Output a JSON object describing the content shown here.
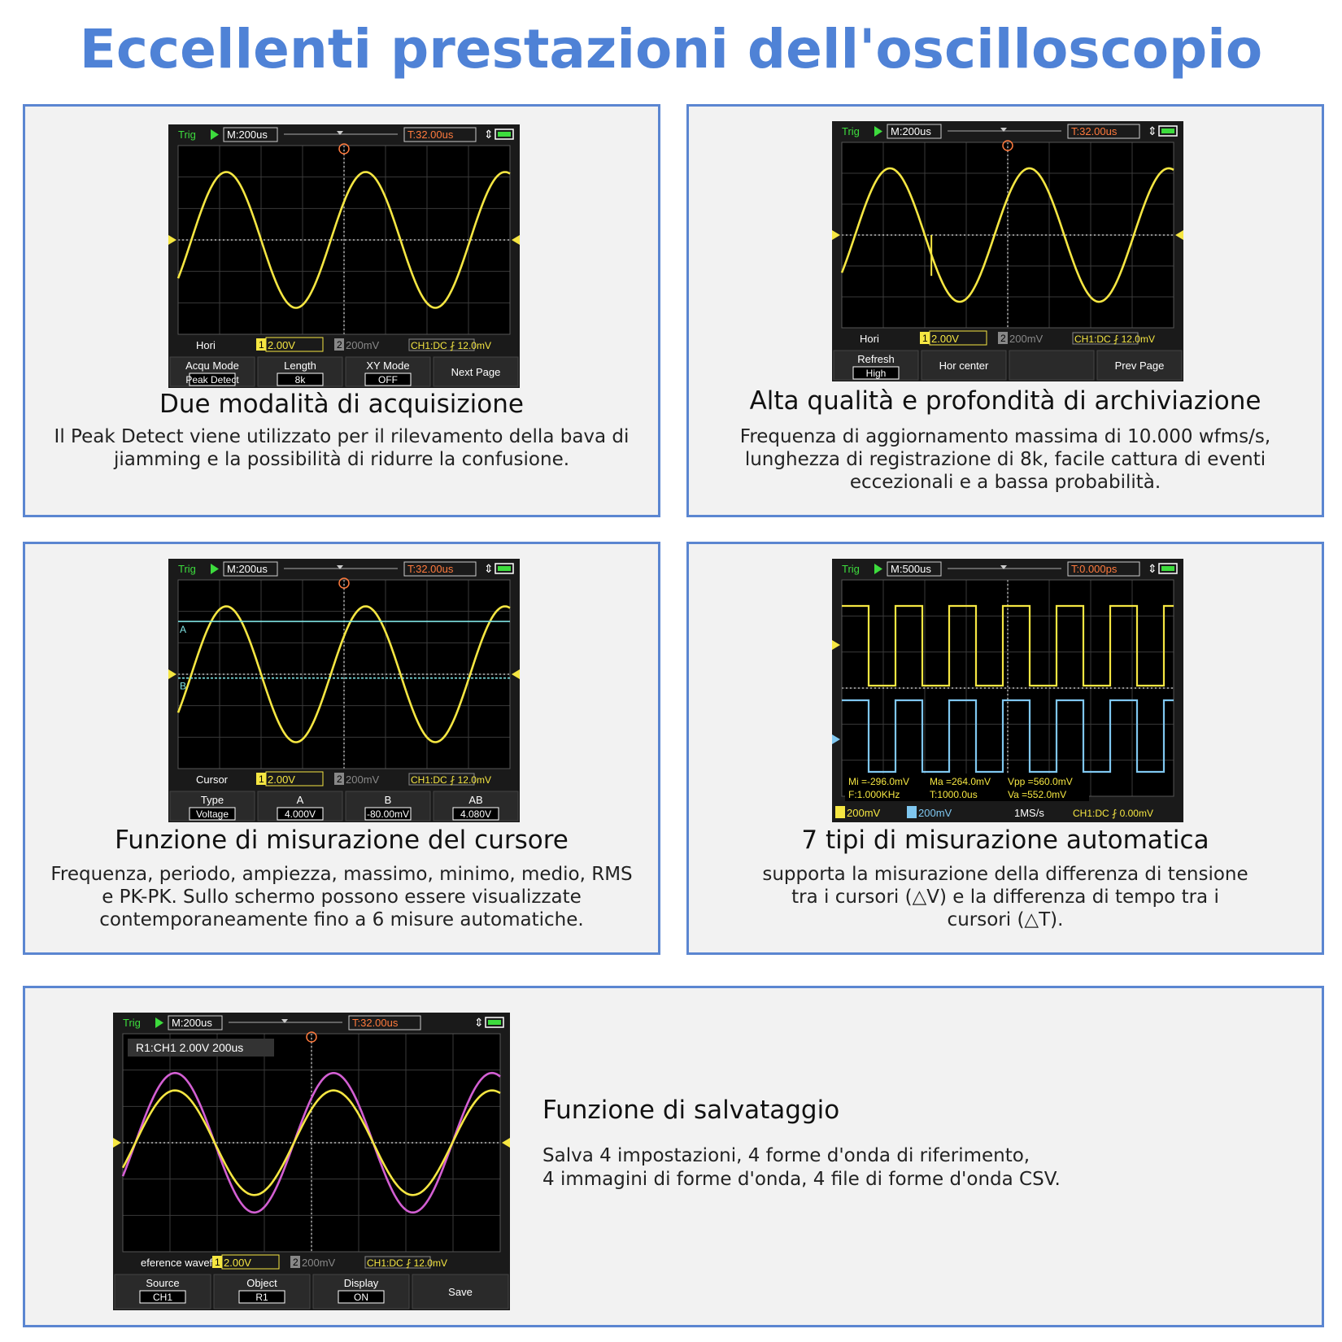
{
  "title": "Eccellenti prestazioni dell'oscilloscopio",
  "colors": {
    "title": "#4f82d6",
    "panel_border": "#5b86d1",
    "panel_bg": "#f2f2f2",
    "ch1": "#f5e642",
    "ch2": "#7fc7f0",
    "ref": "#d35fd3",
    "cursor": "#7fe3e3"
  },
  "panels": [
    {
      "heading": "Due modalità di acquisizione",
      "body": "Il Peak Detect viene utilizzato per il rilevamento della bava di jiamming e la possibilità di ridurre la confusione.",
      "screen": {
        "trig": "Trig",
        "timebase": "M:200us",
        "trig_time": "T:32.00us",
        "menu": "Hori",
        "ch1": "2.00V",
        "ch2": "200mV",
        "ch_info": "CH1:DC ⨏ 12.0mV",
        "softkeys": [
          {
            "label": "Acqu Mode",
            "value": "Peak Detect"
          },
          {
            "label": "Length",
            "value": "8k"
          },
          {
            "label": "XY Mode",
            "value": "OFF"
          },
          {
            "label": "Next Page",
            "value": ""
          }
        ]
      }
    },
    {
      "heading": "Alta qualità e profondità di archiviazione",
      "body": "Frequenza di aggiornamento massima di 10.000 wfms/s, lunghezza di registrazione di 8k, facile cattura di eventi eccezionali e a bassa probabilità.",
      "screen": {
        "trig": "Trig",
        "timebase": "M:200us",
        "trig_time": "T:32.00us",
        "menu": "Hori",
        "ch1": "2.00V",
        "ch2": "200mV",
        "ch_info": "CH1:DC ⨏ 12.0mV",
        "softkeys": [
          {
            "label": "Refresh",
            "value": "High"
          },
          {
            "label": "Hor center",
            "value": ""
          },
          {
            "label": "",
            "value": ""
          },
          {
            "label": "Prev Page",
            "value": ""
          }
        ]
      }
    },
    {
      "heading": "Funzione di misurazione del cursore",
      "body": "Frequenza, periodo, ampiezza, massimo, minimo, medio, RMS e PK-PK. Sullo schermo possono essere visualizzate contemporaneamente fino a 6 misure automatiche.",
      "screen": {
        "trig": "Trig",
        "timebase": "M:200us",
        "trig_time": "T:32.00us",
        "menu": "Cursor",
        "ch1": "2.00V",
        "ch2": "200mV",
        "ch_info": "CH1:DC ⨏ 12.0mV",
        "cursor_a": "A",
        "cursor_b": "B",
        "softkeys": [
          {
            "label": "Type",
            "value": "Voltage"
          },
          {
            "label": "A",
            "value": "4.000V"
          },
          {
            "label": "B",
            "value": "-80.00mV"
          },
          {
            "label": "AB",
            "value": "4.080V"
          }
        ]
      }
    },
    {
      "heading": "7 tipi di misurazione automatica",
      "body": "supporta la misurazione della differenza di tensione tra i cursori (△V) e la differenza di tempo tra i cursori (△T).",
      "screen": {
        "trig": "Trig",
        "timebase": "M:500us",
        "trig_time": "T:0.000ps",
        "measurements": [
          "Mi =-296.0mV",
          "Ma =264.0mV",
          "Vpp =560.0mV",
          "F:1.000KHz",
          "T:1000.0us",
          "Va =552.0mV"
        ],
        "ch1": "200mV",
        "ch2": "200mV",
        "sample_rate": "1MS/s",
        "ch_info": "CH1:DC ⨏ 0.00mV"
      }
    },
    {
      "heading": "Funzione di salvataggio",
      "body_lines": [
        "Salva 4 impostazioni, 4 forme d'onda di riferimento,",
        "4 immagini di forme d'onda, 4 file di forme d'onda CSV."
      ],
      "screen": {
        "trig": "Trig",
        "timebase": "M:200us",
        "trig_time": "T:32.00us",
        "ref_label": "R1:CH1 2.00V 200us",
        "menu": "eference wavefor",
        "ch1": "2.00V",
        "ch2": "200mV",
        "ch_info": "CH1:DC ⨏ 12.0mV",
        "softkeys": [
          {
            "label": "Source",
            "value": "CH1"
          },
          {
            "label": "Object",
            "value": "R1"
          },
          {
            "label": "Display",
            "value": "ON"
          },
          {
            "label": "Save",
            "value": ""
          }
        ]
      }
    }
  ]
}
